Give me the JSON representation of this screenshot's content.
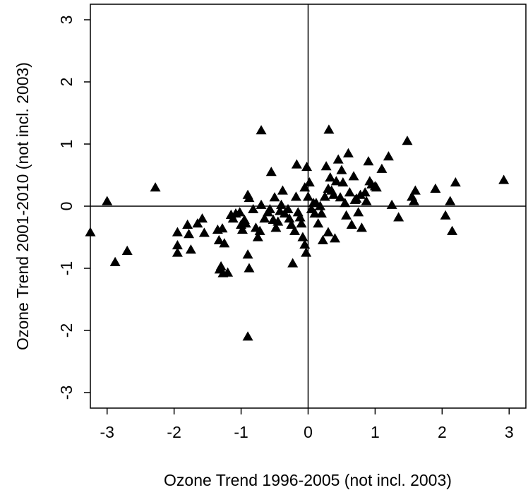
{
  "chart_data": {
    "type": "scatter",
    "title": "",
    "xlabel": "Ozone Trend 1996-2005 (not incl. 2003)",
    "ylabel": "Ozone Trend 2001-2010 (not incl. 2003)",
    "xlim": [
      -3.25,
      3.25
    ],
    "ylim": [
      -3.25,
      3.25
    ],
    "x_ticks": [
      -3,
      -2,
      -1,
      0,
      1,
      2,
      3
    ],
    "y_ticks": [
      -3,
      -2,
      -1,
      0,
      1,
      2,
      3
    ],
    "x_tick_labels": [
      "-3",
      "-2",
      "-1",
      "0",
      "1",
      "2",
      "3"
    ],
    "y_tick_labels": [
      "-3",
      "-2",
      "-1",
      "0",
      "1",
      "2",
      "3"
    ],
    "reference_lines": {
      "x": 0,
      "y": 0
    },
    "marker": "filled-triangle",
    "marker_color": "#000000",
    "grid": false,
    "points": [
      [
        -3.25,
        -0.42
      ],
      [
        -3.0,
        0.08
      ],
      [
        -2.88,
        -0.9
      ],
      [
        -2.7,
        -0.72
      ],
      [
        -2.28,
        0.3
      ],
      [
        -1.95,
        -0.42
      ],
      [
        -1.95,
        -0.63
      ],
      [
        -1.95,
        -0.75
      ],
      [
        -1.8,
        -0.3
      ],
      [
        -1.78,
        -0.45
      ],
      [
        -1.75,
        -0.7
      ],
      [
        -1.65,
        -0.28
      ],
      [
        -1.58,
        -0.2
      ],
      [
        -1.55,
        -0.43
      ],
      [
        -1.35,
        -0.38
      ],
      [
        -1.33,
        -0.55
      ],
      [
        -1.32,
        -1.02
      ],
      [
        -1.3,
        -0.97
      ],
      [
        -1.28,
        -0.36
      ],
      [
        -1.27,
        -1.08
      ],
      [
        -1.25,
        -0.6
      ],
      [
        -1.2,
        -1.07
      ],
      [
        -1.15,
        -0.14
      ],
      [
        -1.12,
        -0.2
      ],
      [
        -1.08,
        -0.12
      ],
      [
        -1.02,
        -0.1
      ],
      [
        -1.0,
        -0.3
      ],
      [
        -0.98,
        -0.38
      ],
      [
        -0.95,
        -0.22
      ],
      [
        -0.93,
        -0.28
      ],
      [
        -0.9,
        0.18
      ],
      [
        -0.88,
        0.13
      ],
      [
        -0.9,
        -0.78
      ],
      [
        -0.88,
        -1.0
      ],
      [
        -0.9,
        -2.1
      ],
      [
        -0.82,
        -0.05
      ],
      [
        -0.78,
        -0.35
      ],
      [
        -0.75,
        -0.5
      ],
      [
        -0.72,
        -0.4
      ],
      [
        -0.7,
        0.02
      ],
      [
        -0.7,
        1.22
      ],
      [
        -0.65,
        -0.2
      ],
      [
        -0.6,
        -0.1
      ],
      [
        -0.57,
        -0.05
      ],
      [
        -0.55,
        0.55
      ],
      [
        -0.52,
        -0.22
      ],
      [
        -0.5,
        0.14
      ],
      [
        -0.48,
        -0.35
      ],
      [
        -0.45,
        -0.25
      ],
      [
        -0.42,
        -0.08
      ],
      [
        -0.4,
        0.02
      ],
      [
        -0.38,
        0.25
      ],
      [
        -0.35,
        -0.12
      ],
      [
        -0.3,
        -0.05
      ],
      [
        -0.28,
        -0.2
      ],
      [
        -0.25,
        -0.3
      ],
      [
        -0.23,
        -0.92
      ],
      [
        -0.2,
        -0.4
      ],
      [
        -0.18,
        0.15
      ],
      [
        -0.17,
        0.67
      ],
      [
        -0.15,
        -0.1
      ],
      [
        -0.12,
        -0.18
      ],
      [
        -0.1,
        -0.28
      ],
      [
        -0.08,
        -0.5
      ],
      [
        -0.05,
        0.3
      ],
      [
        -0.05,
        -0.62
      ],
      [
        -0.03,
        -0.75
      ],
      [
        -0.02,
        0.63
      ],
      [
        0.0,
        0.15
      ],
      [
        0.02,
        0.38
      ],
      [
        0.05,
        -0.05
      ],
      [
        0.08,
        0.05
      ],
      [
        0.1,
        -0.12
      ],
      [
        0.12,
        0.05
      ],
      [
        0.15,
        -0.28
      ],
      [
        0.18,
        0.0
      ],
      [
        0.2,
        -0.12
      ],
      [
        0.22,
        -0.55
      ],
      [
        0.25,
        0.15
      ],
      [
        0.27,
        0.64
      ],
      [
        0.3,
        0.28
      ],
      [
        0.3,
        -0.42
      ],
      [
        0.31,
        1.23
      ],
      [
        0.33,
        0.46
      ],
      [
        0.35,
        0.25
      ],
      [
        0.38,
        0.18
      ],
      [
        0.4,
        -0.52
      ],
      [
        0.42,
        0.4
      ],
      [
        0.45,
        0.75
      ],
      [
        0.48,
        0.14
      ],
      [
        0.5,
        0.58
      ],
      [
        0.52,
        0.38
      ],
      [
        0.55,
        0.05
      ],
      [
        0.57,
        -0.15
      ],
      [
        0.6,
        0.85
      ],
      [
        0.62,
        0.22
      ],
      [
        0.65,
        -0.3
      ],
      [
        0.68,
        0.48
      ],
      [
        0.7,
        0.1
      ],
      [
        0.72,
        0.12
      ],
      [
        0.75,
        -0.1
      ],
      [
        0.78,
        0.18
      ],
      [
        0.8,
        -0.35
      ],
      [
        0.85,
        0.22
      ],
      [
        0.87,
        0.08
      ],
      [
        0.9,
        0.72
      ],
      [
        0.92,
        0.4
      ],
      [
        0.95,
        0.35
      ],
      [
        1.0,
        0.32
      ],
      [
        1.02,
        0.3
      ],
      [
        1.1,
        0.6
      ],
      [
        1.2,
        0.8
      ],
      [
        1.25,
        0.02
      ],
      [
        1.35,
        -0.18
      ],
      [
        1.48,
        1.05
      ],
      [
        1.55,
        0.15
      ],
      [
        1.58,
        0.08
      ],
      [
        1.6,
        0.25
      ],
      [
        1.9,
        0.28
      ],
      [
        2.05,
        -0.15
      ],
      [
        2.12,
        0.08
      ],
      [
        2.15,
        -0.4
      ],
      [
        2.2,
        0.38
      ],
      [
        2.92,
        0.42
      ]
    ]
  }
}
